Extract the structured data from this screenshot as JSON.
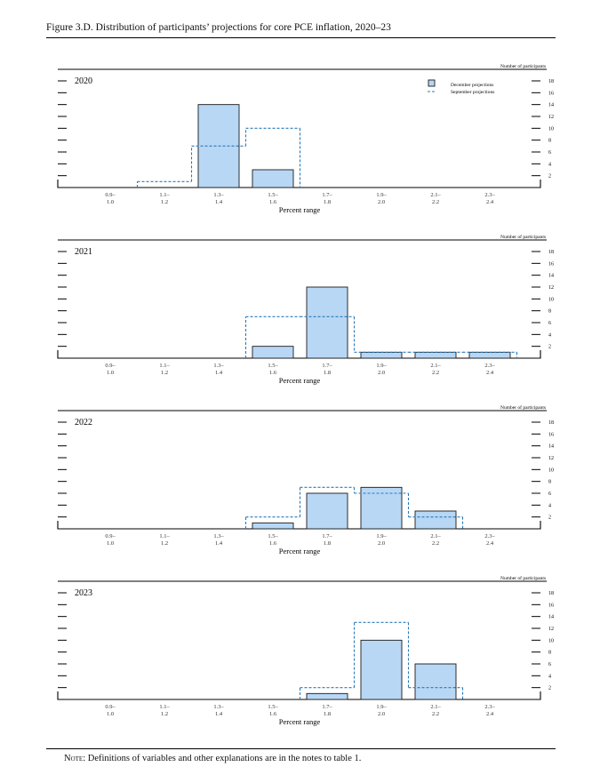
{
  "figure": {
    "title": "Figure 3.D. Distribution of participants’ projections for core PCE inflation, 2020–23",
    "note_label": "Note:",
    "note_text": " Definitions of variables and other explanations are in the notes to table 1."
  },
  "colors": {
    "december_fill": "#b8d7f5",
    "december_stroke": "#1a1a1a",
    "september_line": "#2a7ab8",
    "axis": "#000000"
  },
  "legend": {
    "december": "December projections",
    "september": "September projections"
  },
  "chart_data": [
    {
      "type": "bar",
      "title": "2020",
      "categories": [
        "0.9–1.0",
        "1.1–1.2",
        "1.3–1.4",
        "1.5–1.6",
        "1.7–1.8",
        "1.9–2.0",
        "2.1–2.2",
        "2.3–2.4"
      ],
      "series": [
        {
          "name": "December projections",
          "values": [
            0,
            0,
            14,
            3,
            0,
            0,
            0,
            0
          ]
        },
        {
          "name": "September projections",
          "values": [
            0,
            1,
            7,
            10,
            0,
            0,
            0,
            0
          ]
        }
      ],
      "xlabel": "Percent range",
      "ylabel": "Number of participants",
      "ylim": [
        0,
        18
      ],
      "yticks": [
        2,
        4,
        6,
        8,
        10,
        12,
        14,
        16,
        18
      ],
      "legend_position": "top-right",
      "grid": false
    },
    {
      "type": "bar",
      "title": "2021",
      "categories": [
        "0.9–1.0",
        "1.1–1.2",
        "1.3–1.4",
        "1.5–1.6",
        "1.7–1.8",
        "1.9–2.0",
        "2.1–2.2",
        "2.3–2.4"
      ],
      "series": [
        {
          "name": "December projections",
          "values": [
            0,
            0,
            0,
            2,
            12,
            1,
            1,
            1
          ]
        },
        {
          "name": "September projections",
          "values": [
            0,
            0,
            0,
            7,
            7,
            1,
            1,
            1
          ]
        }
      ],
      "xlabel": "Percent range",
      "ylabel": "Number of participants",
      "ylim": [
        0,
        18
      ],
      "yticks": [
        2,
        4,
        6,
        8,
        10,
        12,
        14,
        16,
        18
      ],
      "grid": false
    },
    {
      "type": "bar",
      "title": "2022",
      "categories": [
        "0.9–1.0",
        "1.1–1.2",
        "1.3–1.4",
        "1.5–1.6",
        "1.7–1.8",
        "1.9–2.0",
        "2.1–2.2",
        "2.3–2.4"
      ],
      "series": [
        {
          "name": "December projections",
          "values": [
            0,
            0,
            0,
            1,
            6,
            7,
            3,
            0
          ]
        },
        {
          "name": "September projections",
          "values": [
            0,
            0,
            0,
            2,
            7,
            6,
            2,
            0
          ]
        }
      ],
      "xlabel": "Percent range",
      "ylabel": "Number of participants",
      "ylim": [
        0,
        18
      ],
      "yticks": [
        2,
        4,
        6,
        8,
        10,
        12,
        14,
        16,
        18
      ],
      "grid": false
    },
    {
      "type": "bar",
      "title": "2023",
      "categories": [
        "0.9–1.0",
        "1.1–1.2",
        "1.3–1.4",
        "1.5–1.6",
        "1.7–1.8",
        "1.9–2.0",
        "2.1–2.2",
        "2.3–2.4"
      ],
      "series": [
        {
          "name": "December projections",
          "values": [
            0,
            0,
            0,
            0,
            1,
            10,
            6,
            0
          ]
        },
        {
          "name": "September projections",
          "values": [
            0,
            0,
            0,
            0,
            2,
            13,
            2,
            0
          ]
        }
      ],
      "xlabel": "Percent range",
      "ylabel": "Number of participants",
      "ylim": [
        0,
        18
      ],
      "yticks": [
        2,
        4,
        6,
        8,
        10,
        12,
        14,
        16,
        18
      ],
      "grid": false
    }
  ]
}
